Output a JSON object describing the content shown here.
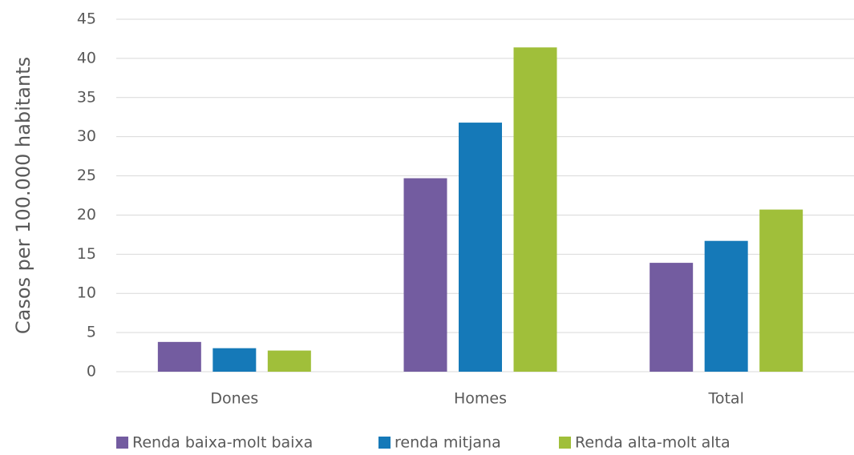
{
  "chart_data": {
    "type": "bar",
    "y_label": "Casos per 100.000 habitants",
    "categories": [
      "Dones",
      "Homes",
      "Total"
    ],
    "series": [
      {
        "name": "Renda baixa-molt baixa",
        "color": "#735ca0",
        "values": [
          3.8,
          24.7,
          13.9
        ]
      },
      {
        "name": "renda mitjana",
        "color": "#1579b8",
        "values": [
          3.0,
          31.8,
          16.7
        ]
      },
      {
        "name": "Renda alta-molt alta",
        "color": "#a0bf3a",
        "values": [
          2.7,
          41.4,
          20.7
        ]
      }
    ],
    "ylim": [
      0,
      45
    ],
    "yticks": [
      0,
      5,
      10,
      15,
      20,
      25,
      30,
      35,
      40,
      45
    ],
    "grid": true,
    "legend": "bottom"
  }
}
